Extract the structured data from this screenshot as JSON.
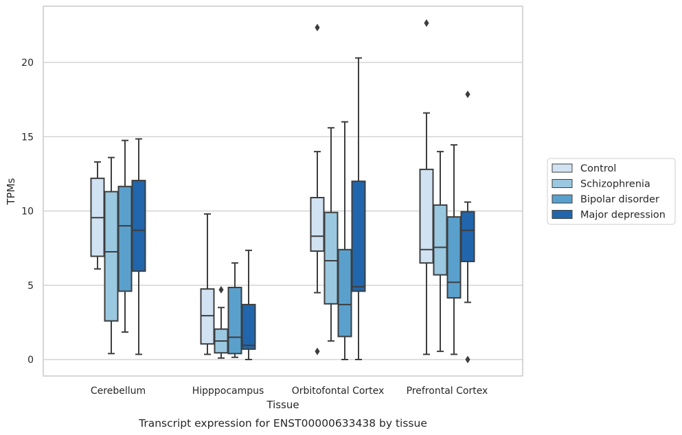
{
  "chart_data": {
    "type": "box",
    "xlabel": "Tissue",
    "ylabel": "TPMs",
    "caption": "Transcript expression for ENST00000633438 by tissue",
    "ylim": [
      -1.1,
      23.8
    ],
    "yticks": [
      0,
      5,
      10,
      15,
      20
    ],
    "grid": "horizontal",
    "legend_position": "right",
    "categories": [
      "Cerebellum",
      "Hipppocampus",
      "Orbitofontal Cortex",
      "Prefrontal Cortex"
    ],
    "series": [
      {
        "name": "Control",
        "color": "#d1e2f2",
        "boxes": [
          {
            "whisker_low": 6.1,
            "q1": 6.95,
            "median": 9.55,
            "q3": 12.2,
            "whisker_high": 13.3,
            "outliers": []
          },
          {
            "whisker_low": 0.35,
            "q1": 1.05,
            "median": 2.95,
            "q3": 4.75,
            "whisker_high": 9.8,
            "outliers": []
          },
          {
            "whisker_low": 4.5,
            "q1": 7.3,
            "median": 8.3,
            "q3": 10.9,
            "whisker_high": 14.0,
            "outliers": [
              22.35,
              0.55
            ]
          },
          {
            "whisker_low": 0.35,
            "q1": 6.5,
            "median": 7.4,
            "q3": 12.8,
            "whisker_high": 16.6,
            "outliers": [
              22.65
            ]
          }
        ]
      },
      {
        "name": "Schizophrenia",
        "color": "#9ac8e0",
        "boxes": [
          {
            "whisker_low": 0.4,
            "q1": 2.6,
            "median": 7.25,
            "q3": 11.3,
            "whisker_high": 13.6,
            "outliers": []
          },
          {
            "whisker_low": 0.1,
            "q1": 0.45,
            "median": 1.25,
            "q3": 2.05,
            "whisker_high": 3.5,
            "outliers": [
              4.7
            ]
          },
          {
            "whisker_low": 1.25,
            "q1": 3.75,
            "median": 6.65,
            "q3": 9.9,
            "whisker_high": 15.6,
            "outliers": []
          },
          {
            "whisker_low": 0.55,
            "q1": 5.7,
            "median": 7.55,
            "q3": 10.4,
            "whisker_high": 14.0,
            "outliers": []
          }
        ]
      },
      {
        "name": "Bipolar disorder",
        "color": "#5aa0cd",
        "boxes": [
          {
            "whisker_low": 1.85,
            "q1": 4.6,
            "median": 9.0,
            "q3": 11.65,
            "whisker_high": 14.75,
            "outliers": []
          },
          {
            "whisker_low": 0.15,
            "q1": 0.4,
            "median": 1.5,
            "q3": 4.85,
            "whisker_high": 6.5,
            "outliers": []
          },
          {
            "whisker_low": 0.0,
            "q1": 1.55,
            "median": 3.7,
            "q3": 7.4,
            "whisker_high": 16.0,
            "outliers": []
          },
          {
            "whisker_low": 0.35,
            "q1": 4.15,
            "median": 5.2,
            "q3": 9.6,
            "whisker_high": 14.45,
            "outliers": []
          }
        ]
      },
      {
        "name": "Major depression",
        "color": "#2166ac",
        "boxes": [
          {
            "whisker_low": 0.35,
            "q1": 5.95,
            "median": 8.7,
            "q3": 12.05,
            "whisker_high": 14.85,
            "outliers": []
          },
          {
            "whisker_low": 0.0,
            "q1": 0.7,
            "median": 0.95,
            "q3": 3.7,
            "whisker_high": 7.35,
            "outliers": []
          },
          {
            "whisker_low": 0.0,
            "q1": 4.6,
            "median": 4.9,
            "q3": 12.0,
            "whisker_high": 20.3,
            "outliers": []
          },
          {
            "whisker_low": 3.85,
            "q1": 6.6,
            "median": 8.7,
            "q3": 9.95,
            "whisker_high": 10.6,
            "outliers": [
              0.0,
              17.85
            ]
          }
        ]
      }
    ]
  }
}
